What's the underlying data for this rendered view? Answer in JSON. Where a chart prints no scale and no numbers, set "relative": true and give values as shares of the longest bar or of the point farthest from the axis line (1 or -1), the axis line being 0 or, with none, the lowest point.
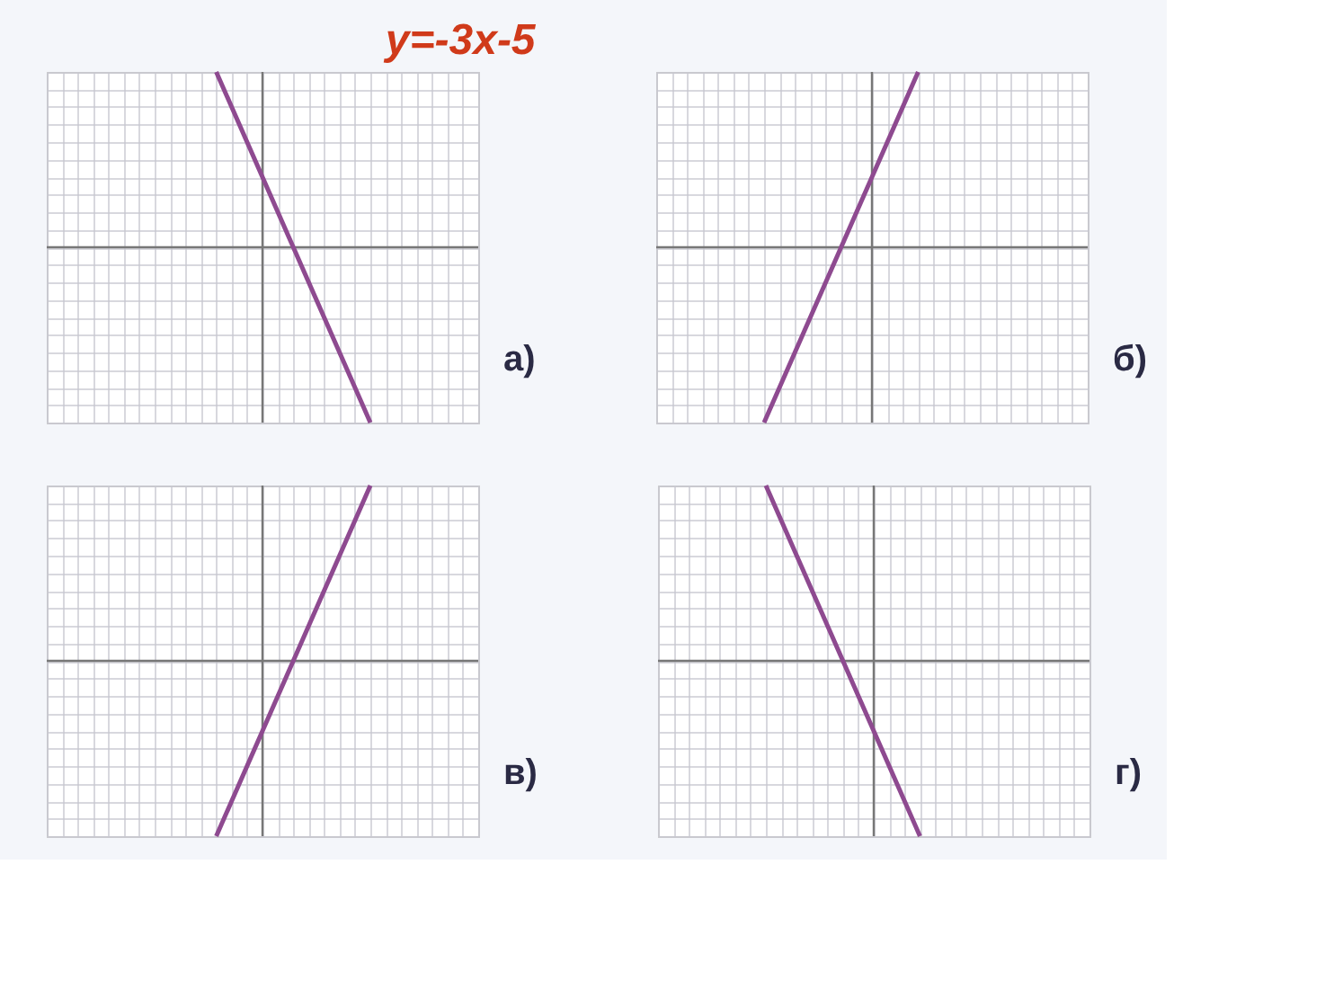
{
  "chart_data": [
    {
      "type": "line",
      "title": "y=-3x-5",
      "relative": true,
      "grid": true,
      "annotations": [
        "а)"
      ],
      "categories": [
        null,
        null,
        null,
        null,
        null,
        null,
        null,
        null,
        null,
        null,
        null,
        null,
        null,
        null,
        null,
        null,
        null,
        null,
        null,
        null,
        null,
        null,
        null,
        null,
        null,
        null,
        null,
        null,
        null
      ],
      "series": [
        {
          "color": "#8e4a90",
          "values": [
            null,
            null,
            null,
            null,
            null,
            null,
            null,
            null,
            null,
            null,
            null,
            1,
            0.8,
            0.6,
            0.4,
            0.2,
            0,
            -0.2,
            -0.4,
            -0.6,
            -0.8,
            -1,
            null,
            null,
            null,
            null,
            null,
            null,
            null
          ]
        }
      ]
    },
    {
      "type": "line",
      "relative": true,
      "grid": true,
      "annotations": [
        "б)"
      ],
      "categories": [
        null,
        null,
        null,
        null,
        null,
        null,
        null,
        null,
        null,
        null,
        null,
        null,
        null,
        null,
        null,
        null,
        null,
        null,
        null,
        null,
        null,
        null,
        null,
        null,
        null,
        null,
        null,
        null,
        null
      ],
      "series": [
        {
          "color": "#8e4a90",
          "values": [
            null,
            null,
            null,
            null,
            null,
            null,
            null,
            -1,
            -0.8,
            -0.6,
            -0.4,
            -0.2,
            0,
            0.2,
            0.4,
            0.6,
            0.8,
            1,
            null,
            null,
            null,
            null,
            null,
            null,
            null,
            null,
            null,
            null,
            null
          ]
        }
      ]
    },
    {
      "type": "line",
      "relative": true,
      "grid": true,
      "annotations": [
        "в)"
      ],
      "categories": [
        null,
        null,
        null,
        null,
        null,
        null,
        null,
        null,
        null,
        null,
        null,
        null,
        null,
        null,
        null,
        null,
        null,
        null,
        null,
        null,
        null,
        null,
        null,
        null,
        null,
        null,
        null,
        null,
        null
      ],
      "series": [
        {
          "color": "#8e4a90",
          "values": [
            null,
            null,
            null,
            null,
            null,
            null,
            null,
            null,
            null,
            null,
            null,
            -1,
            -0.8,
            -0.6,
            -0.4,
            -0.2,
            0,
            0.2,
            0.4,
            0.6,
            0.8,
            1,
            null,
            null,
            null,
            null,
            null,
            null,
            null
          ]
        }
      ]
    },
    {
      "type": "line",
      "relative": true,
      "grid": true,
      "annotations": [
        "г)"
      ],
      "categories": [
        null,
        null,
        null,
        null,
        null,
        null,
        null,
        null,
        null,
        null,
        null,
        null,
        null,
        null,
        null,
        null,
        null,
        null,
        null,
        null,
        null,
        null,
        null,
        null,
        null,
        null,
        null,
        null,
        null
      ],
      "series": [
        {
          "color": "#8e4a90",
          "values": [
            null,
            null,
            null,
            null,
            null,
            null,
            null,
            1,
            0.8,
            0.6,
            0.4,
            0.2,
            0,
            -0.2,
            -0.4,
            -0.6,
            -0.8,
            -1,
            null,
            null,
            null,
            null,
            null,
            null,
            null,
            null,
            null,
            null,
            null
          ]
        }
      ]
    }
  ]
}
